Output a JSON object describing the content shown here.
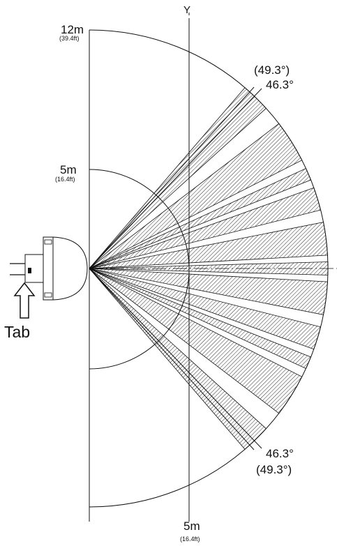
{
  "labels": {
    "axis_y": "Y",
    "range_12m": "12m",
    "range_12m_ft": "(39.4ft)",
    "range_5m": "5m",
    "range_5m_ft": "(16.4ft)",
    "bottom_5m": "5m",
    "bottom_5m_ft": "(16.4ft)",
    "angle_upper_outer": "(49.3°)",
    "angle_upper_inner": "46.3°",
    "angle_lower_inner": "46.3°",
    "angle_lower_outer": "(49.3°)",
    "tab": "Tab"
  },
  "detection": {
    "max_range_m": 12,
    "inner_range_m": 5,
    "half_angle_deg": 46.3,
    "half_angle_max_deg": 49.3,
    "zones_deg": [
      [
        42.2,
        49.3
      ],
      [
        27.0,
        37.4
      ],
      [
        21.8,
        24.8
      ],
      [
        14.2,
        19.8
      ],
      [
        3.2,
        11.2
      ],
      [
        -1.6,
        1.6
      ],
      [
        -11.2,
        -3.2
      ],
      [
        -19.8,
        -14.2
      ],
      [
        -24.8,
        -21.8
      ],
      [
        -37.4,
        -27.0
      ],
      [
        -49.3,
        -42.2
      ]
    ]
  },
  "colors": {
    "line": "#111111",
    "hatch": "#333333",
    "background": "#ffffff"
  }
}
